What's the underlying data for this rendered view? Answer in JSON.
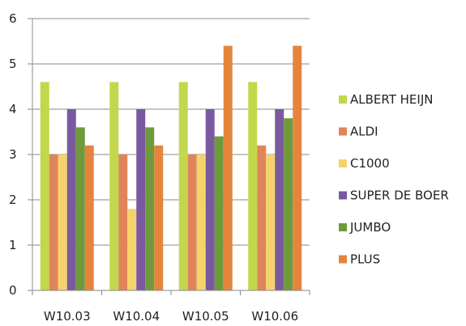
{
  "chart_data": {
    "type": "bar",
    "title": "",
    "xlabel": "",
    "ylabel": "",
    "ylim": [
      0,
      6
    ],
    "yticks": [
      "0",
      "1",
      "2",
      "3",
      "4",
      "5",
      "6"
    ],
    "grid": true,
    "legend_position": "right",
    "categories": [
      "W10.03",
      "W10.04",
      "W10.05",
      "W10.06"
    ],
    "series": [
      {
        "name": "ALBERT HEIJN",
        "color": "#c3d74d",
        "values": [
          4.6,
          4.6,
          4.6,
          4.6
        ]
      },
      {
        "name": "ALDI",
        "color": "#e0855a",
        "values": [
          3.0,
          3.0,
          3.0,
          3.2
        ]
      },
      {
        "name": "C1000",
        "color": "#f5d36b",
        "values": [
          3.0,
          1.8,
          3.0,
          3.0
        ]
      },
      {
        "name": "SUPER DE BOER",
        "color": "#7a59a0",
        "values": [
          4.0,
          4.0,
          4.0,
          4.0
        ]
      },
      {
        "name": "JUMBO",
        "color": "#6f9a3c",
        "values": [
          3.6,
          3.6,
          3.4,
          3.8
        ]
      },
      {
        "name": "PLUS",
        "color": "#e5853d",
        "values": [
          3.2,
          3.2,
          5.4,
          5.4
        ]
      }
    ]
  }
}
